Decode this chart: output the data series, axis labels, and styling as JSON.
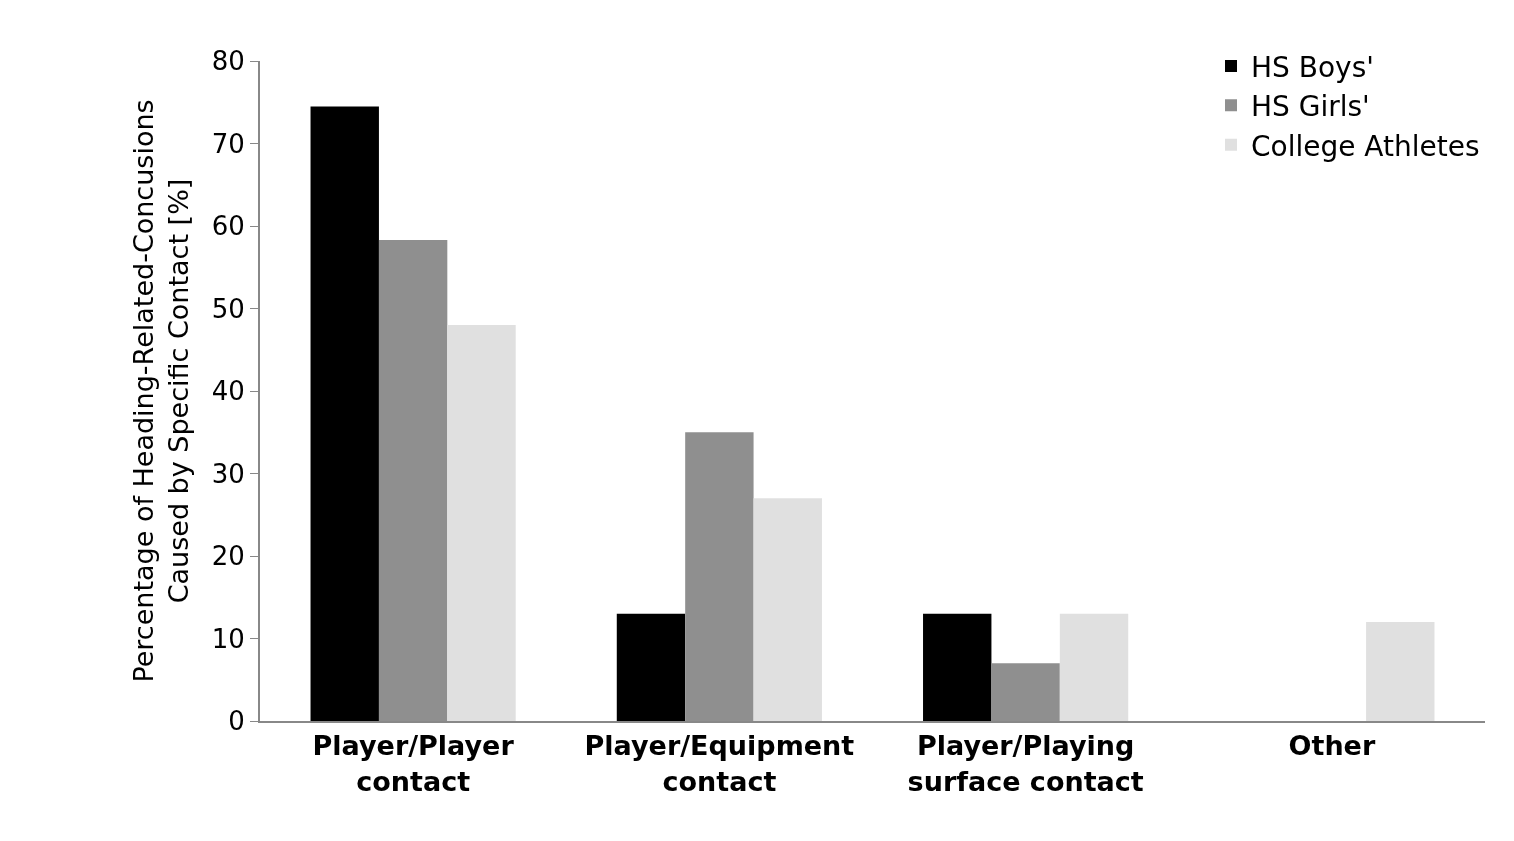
{
  "chart_data": {
    "type": "bar",
    "ylabel": "Percentage of Heading-Related-Concusions\nCaused by Specific Contact [%]",
    "categories": [
      "Player/Player\ncontact",
      "Player/Equipment\ncontact",
      "Player/Playing\nsurface contact",
      "Other"
    ],
    "series": [
      {
        "name": "HS Boys'",
        "color": "#000000",
        "values": [
          74.5,
          13,
          13,
          0
        ]
      },
      {
        "name": "HS Girls'",
        "color": "#8f8f8f",
        "values": [
          58.3,
          35,
          7,
          0
        ]
      },
      {
        "name": "College Athletes",
        "color": "#e0e0e0",
        "values": [
          48,
          27,
          13,
          12
        ]
      }
    ],
    "ylim": [
      0,
      80
    ],
    "yticks": [
      0,
      10,
      20,
      30,
      40,
      50,
      60,
      70,
      80
    ],
    "legend": "top right"
  }
}
